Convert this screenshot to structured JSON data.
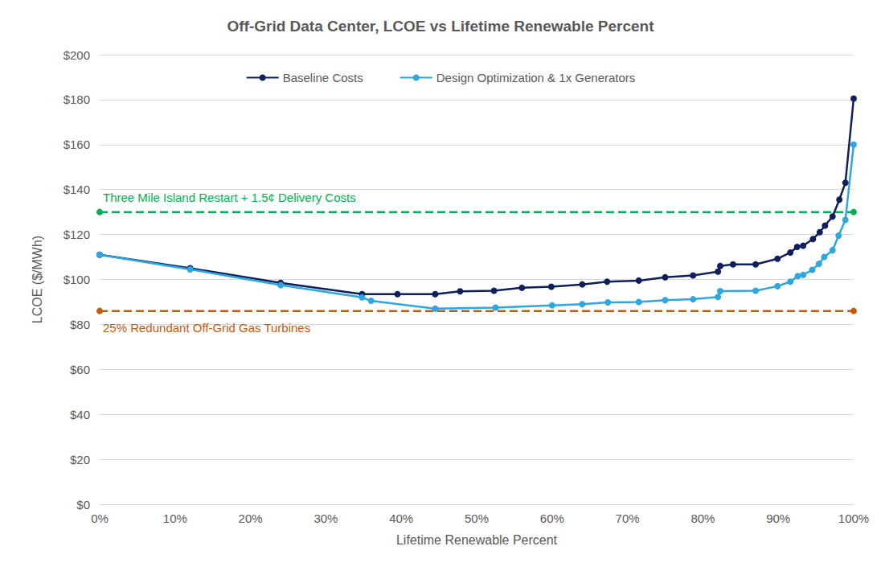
{
  "chart_data": {
    "type": "line",
    "title": "Off-Grid Data Center, LCOE vs Lifetime Renewable Percent",
    "x_label": "Lifetime Renewable Percent",
    "y_label": "LCOE ($/MWh)",
    "xlim": [
      0,
      100
    ],
    "xticks": [
      {
        "value": 0,
        "label": "0%"
      },
      {
        "value": 10,
        "label": "10%"
      },
      {
        "value": 20,
        "label": "20%"
      },
      {
        "value": 30,
        "label": "30%"
      },
      {
        "value": 40,
        "label": "40%"
      },
      {
        "value": 50,
        "label": "50%"
      },
      {
        "value": 60,
        "label": "60%"
      },
      {
        "value": 70,
        "label": "70%"
      },
      {
        "value": 80,
        "label": "80%"
      },
      {
        "value": 90,
        "label": "90%"
      },
      {
        "value": 100,
        "label": "100%"
      }
    ],
    "ylim": [
      0,
      200
    ],
    "yticks": [
      {
        "value": 0,
        "label": "$0"
      },
      {
        "value": 20,
        "label": "$20"
      },
      {
        "value": 40,
        "label": "$40"
      },
      {
        "value": 60,
        "label": "$60"
      },
      {
        "value": 80,
        "label": "$80"
      },
      {
        "value": 100,
        "label": "$100"
      },
      {
        "value": 120,
        "label": "$120"
      },
      {
        "value": 140,
        "label": "$140"
      },
      {
        "value": 160,
        "label": "$160"
      },
      {
        "value": 180,
        "label": "$180"
      },
      {
        "value": 200,
        "label": "$200"
      }
    ],
    "grid": true,
    "legend": "top",
    "marker": "circle",
    "series": [
      {
        "name": "Baseline Costs",
        "color": "#0f1f5c",
        "x": [
          0,
          12,
          24,
          34.8,
          39.5,
          44.5,
          47.8,
          52.3,
          56,
          59.9,
          64,
          67.3,
          71.5,
          75,
          78.7,
          82,
          82.3,
          84,
          87,
          89.9,
          91.6,
          92.5,
          93.3,
          94.6,
          95.5,
          96.2,
          97.2,
          98.1,
          98.9,
          100
        ],
        "values": [
          111,
          105,
          98.5,
          93.5,
          93.5,
          93.5,
          94.7,
          95,
          96.3,
          96.8,
          97.8,
          99,
          99.5,
          101,
          101.8,
          103.5,
          106,
          106.7,
          106.7,
          109.2,
          112,
          114.5,
          115,
          118,
          121,
          124,
          128,
          135.5,
          143,
          180.5
        ]
      },
      {
        "name": "Design Optimization & 1x Generators",
        "color": "#2ea6df",
        "x": [
          0,
          12,
          24,
          34.8,
          36,
          44.5,
          52.5,
          60,
          64,
          67.4,
          71.5,
          75,
          78.7,
          82,
          82.3,
          87,
          89.9,
          91.6,
          92.6,
          93.3,
          94.5,
          95.4,
          96.1,
          97.2,
          98,
          98.9,
          100
        ],
        "values": [
          111,
          104.5,
          97.5,
          92,
          90.5,
          87,
          87.5,
          88.5,
          89,
          89.8,
          90,
          90.8,
          91.2,
          92.2,
          94.8,
          95,
          97,
          99,
          101.5,
          102,
          104.3,
          107,
          110,
          113,
          119.5,
          126.5,
          160
        ]
      }
    ],
    "reference_lines": [
      {
        "text": "Three Mile Island Restart + 1.5¢ Delivery Costs",
        "color": "#00b050",
        "line_style": "dashed",
        "marker": "circle",
        "x": [
          0,
          100
        ],
        "values": [
          130,
          130
        ]
      },
      {
        "text": "25% Redundant Off-Grid Gas Turbines",
        "color": "#c55a11",
        "line_style": "dashed",
        "marker": "circle",
        "x": [
          0,
          100
        ],
        "values": [
          86,
          86
        ]
      }
    ]
  }
}
